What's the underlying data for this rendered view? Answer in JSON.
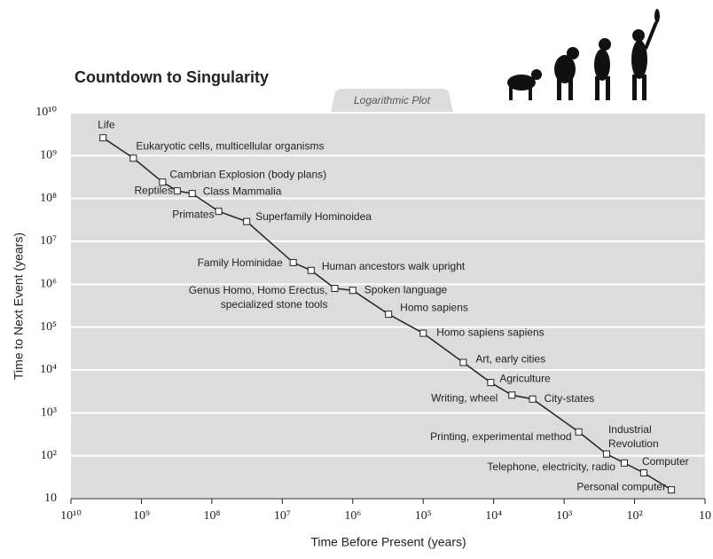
{
  "chart_data": {
    "type": "line",
    "title": "Countdown to Singularity",
    "subtitle": "Logarithmic Plot",
    "x_label": "Time Before Present (years)",
    "y_label": "Time to Next Event (years)",
    "log_x": true,
    "log_y": true,
    "x_reversed": true,
    "grid": true,
    "color": "#222222",
    "xlim": [
      10000000000,
      10
    ],
    "ylim": [
      10,
      10000000000
    ],
    "xticks": [
      {
        "value": 10000000000,
        "label": "10¹⁰"
      },
      {
        "value": 1000000000,
        "label": "10⁹"
      },
      {
        "value": 100000000,
        "label": "10⁸"
      },
      {
        "value": 10000000,
        "label": "10⁷"
      },
      {
        "value": 1000000,
        "label": "10⁶"
      },
      {
        "value": 100000,
        "label": "10⁵"
      },
      {
        "value": 10000,
        "label": "10⁴"
      },
      {
        "value": 1000,
        "label": "10³"
      },
      {
        "value": 100,
        "label": "10²"
      },
      10
    ],
    "yticks": [
      10,
      {
        "value": 100,
        "label": "10²"
      },
      {
        "value": 1000,
        "label": "10³"
      },
      {
        "value": 10000,
        "label": "10⁴"
      },
      {
        "value": 100000,
        "label": "10⁵"
      },
      {
        "value": 1000000,
        "label": "10⁶"
      },
      {
        "value": 10000000,
        "label": "10⁷"
      },
      {
        "value": 100000000,
        "label": "10⁸"
      },
      {
        "value": 1000000000,
        "label": "10⁹"
      },
      {
        "value": 10000000000,
        "label": "10¹⁰"
      }
    ],
    "points": [
      {
        "label": "Life",
        "x": 3500000000,
        "y": 2600000000
      },
      {
        "label": "Eukaryotic cells, multicellular organisms",
        "x": 1300000000,
        "y": 870000000
      },
      {
        "label": "Cambrian Explosion (body plans)",
        "x": 500000000,
        "y": 240000000
      },
      {
        "label": "Reptiles",
        "x": 310000000,
        "y": 150000000
      },
      {
        "label": "Class Mammalia",
        "x": 190000000,
        "y": 130000000
      },
      {
        "label": "Primates",
        "x": 80000000,
        "y": 50000000
      },
      {
        "label": "Superfamily Hominoidea",
        "x": 32000000,
        "y": 29000000
      },
      {
        "label": "Family Hominidae",
        "x": 7000000,
        "y": 3200000
      },
      {
        "label": "Human ancestors walk upright",
        "x": 3900000,
        "y": 2100000
      },
      {
        "label": [
          "Genus Homo, Homo Erectus,",
          "specialized stone tools"
        ],
        "x": 1800000,
        "y": 800000
      },
      {
        "label": "Spoken language",
        "x": 1000000,
        "y": 720000
      },
      {
        "label": "Homo sapiens",
        "x": 310000,
        "y": 200000
      },
      {
        "label": "Homo sapiens sapiens",
        "x": 100000,
        "y": 72000
      },
      {
        "label": "Art, early cities",
        "x": 27000,
        "y": 15000
      },
      {
        "label": "Agriculture",
        "x": 11000,
        "y": 5100
      },
      {
        "label": "Writing, wheel",
        "x": 5500,
        "y": 2600
      },
      {
        "label": "City-states",
        "x": 2800,
        "y": 2100
      },
      {
        "label": "Printing, experimental method",
        "x": 620,
        "y": 360
      },
      {
        "label": [
          "Industrial",
          "Revolution"
        ],
        "x": 250,
        "y": 110
      },
      {
        "label": "Telephone,  electricity, radio",
        "x": 140,
        "y": 68
      },
      {
        "label": "Computer",
        "x": 74,
        "y": 40
      },
      {
        "label": "Personal computer",
        "x": 30,
        "y": 16
      }
    ]
  }
}
